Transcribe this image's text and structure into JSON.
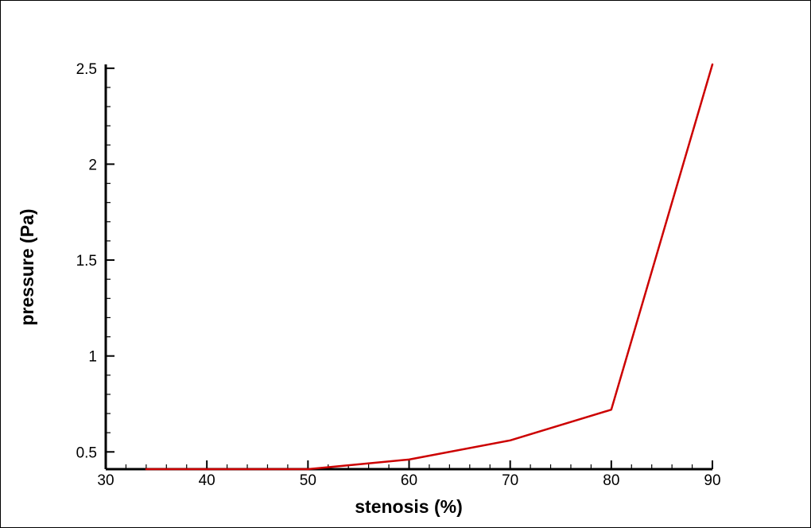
{
  "chart_data": {
    "type": "line",
    "title": "",
    "xlabel": "stenosis (%)",
    "ylabel": "pressure (Pa)",
    "xlim": [
      30,
      90
    ],
    "ylim": [
      0.41,
      2.52
    ],
    "x_ticks": [
      30,
      40,
      50,
      60,
      70,
      80,
      90
    ],
    "x_tick_labels": [
      "30",
      "40",
      "50",
      "60",
      "70",
      "80",
      "90"
    ],
    "y_ticks": [
      0.5,
      1,
      1.5,
      2,
      2.5
    ],
    "y_tick_labels": [
      "0.5",
      "1",
      "1.5",
      "2",
      "2.5"
    ],
    "grid": false,
    "series": [
      {
        "color": "#cc0000",
        "x": [
          34,
          40,
          50,
          60,
          70,
          80,
          90
        ],
        "y": [
          0.41,
          0.41,
          0.41,
          0.46,
          0.56,
          0.72,
          2.52
        ]
      }
    ]
  }
}
